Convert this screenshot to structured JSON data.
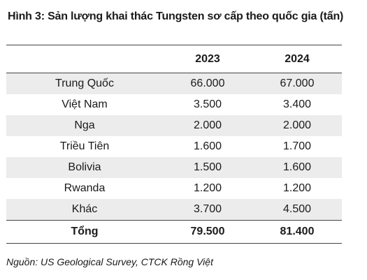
{
  "title": "Hình 3: Sản lượng khai thác Tungsten sơ cấp theo quốc gia (tấn)",
  "source": "Nguồn: US Geological Survey, CTCK Rồng Việt",
  "chart_data": {
    "type": "table",
    "title": "Hình 3: Sản lượng khai thác Tungsten sơ cấp theo quốc gia (tấn)",
    "columns": [
      "",
      "2023",
      "2024"
    ],
    "rows": [
      {
        "name": "Trung Quốc",
        "v2023": "66.000",
        "v2024": "67.000"
      },
      {
        "name": "Việt Nam",
        "v2023": "3.500",
        "v2024": "3.400"
      },
      {
        "name": "Nga",
        "v2023": "2.000",
        "v2024": "2.000"
      },
      {
        "name": "Triều Tiên",
        "v2023": "1.600",
        "v2024": "1.700"
      },
      {
        "name": "Bolivia",
        "v2023": "1.500",
        "v2024": "1.600"
      },
      {
        "name": "Rwanda",
        "v2023": "1.200",
        "v2024": "1.200"
      },
      {
        "name": "Khác",
        "v2023": "3.700",
        "v2024": "4.500"
      }
    ],
    "total": {
      "name": "Tổng",
      "v2023": "79.500",
      "v2024": "81.400"
    }
  }
}
